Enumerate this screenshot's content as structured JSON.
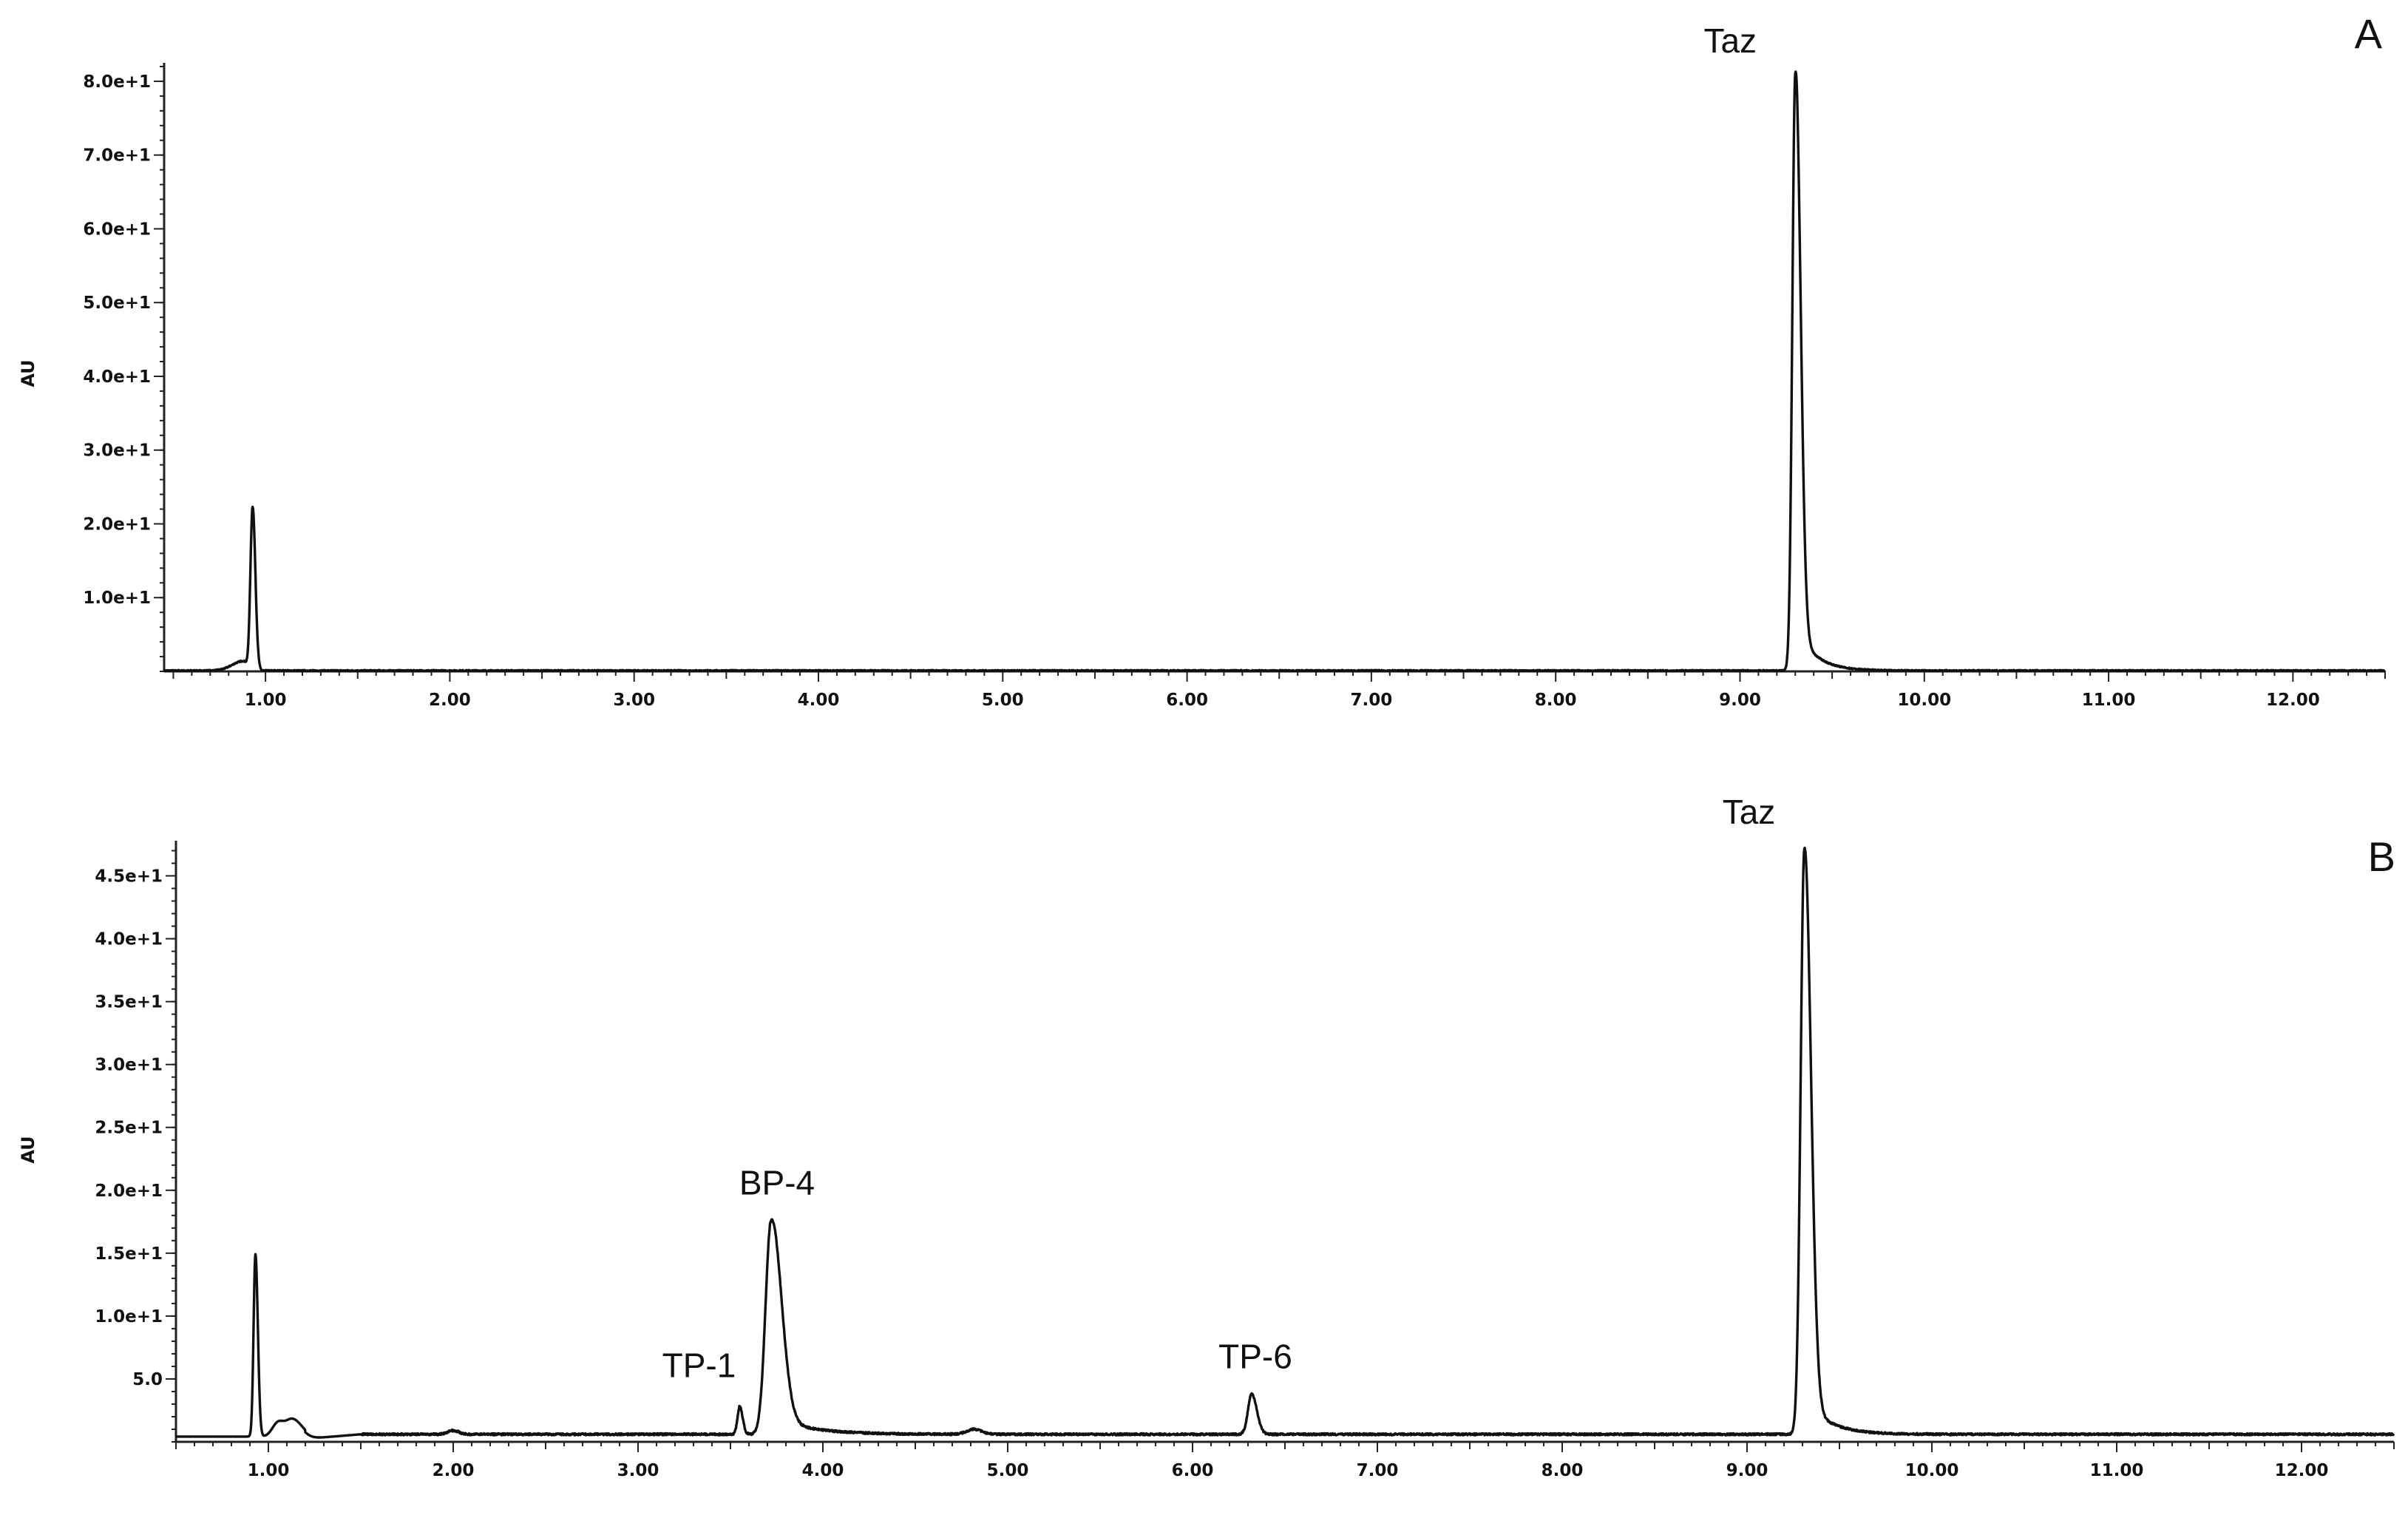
{
  "chart_data": [
    {
      "type": "line",
      "panel": "A",
      "ylabel": "AU",
      "xlim": [
        0.45,
        12.5
      ],
      "ylim": [
        0,
        82
      ],
      "x_ticks": [
        1.0,
        2.0,
        3.0,
        4.0,
        5.0,
        6.0,
        7.0,
        8.0,
        9.0,
        10.0,
        11.0,
        12.0
      ],
      "x_tick_labels": [
        "1.00",
        "2.00",
        "3.00",
        "4.00",
        "5.00",
        "6.00",
        "7.00",
        "8.00",
        "9.00",
        "10.00",
        "11.00",
        "12.00"
      ],
      "y_ticks": [
        10,
        20,
        30,
        40,
        50,
        60,
        70,
        80
      ],
      "y_tick_labels": [
        "1.0e+1",
        "2.0e+1",
        "3.0e+1",
        "4.0e+1",
        "5.0e+1",
        "6.0e+1",
        "7.0e+1",
        "8.0e+1"
      ],
      "baseline": 0.1,
      "peaks": [
        {
          "rt": 0.93,
          "height": 22.2,
          "sigma_left": 0.012,
          "sigma_right": 0.015
        },
        {
          "rt": 9.3,
          "height": 81.0,
          "sigma_left": 0.016,
          "sigma_right": 0.028,
          "tail": 6.5
        },
        {
          "rt": 0.88,
          "height": 1.3,
          "sigma_left": 0.06,
          "sigma_right": 0.02
        }
      ],
      "annotations": [
        {
          "text": "Taz",
          "rt": 9.3
        }
      ]
    },
    {
      "type": "line",
      "panel": "B",
      "ylabel": "AU",
      "xlim": [
        0.5,
        12.5
      ],
      "ylim": [
        0,
        47.5
      ],
      "x_ticks": [
        1.0,
        2.0,
        3.0,
        4.0,
        5.0,
        6.0,
        7.0,
        8.0,
        9.0,
        10.0,
        11.0,
        12.0
      ],
      "x_tick_labels": [
        "1.00",
        "2.00",
        "3.00",
        "4.00",
        "5.00",
        "6.00",
        "7.00",
        "8.00",
        "9.00",
        "10.00",
        "11.00",
        "12.00"
      ],
      "y_ticks": [
        5,
        10,
        15,
        20,
        25,
        30,
        35,
        40,
        45
      ],
      "y_tick_labels": [
        "5.0",
        "1.0e+1",
        "1.5e+1",
        "2.0e+1",
        "2.5e+1",
        "3.0e+1",
        "3.5e+1",
        "4.0e+1",
        "4.5e+1"
      ],
      "baseline": 0.6,
      "peaks": [
        {
          "rt": 0.93,
          "height": 14.5,
          "sigma_left": 0.01,
          "sigma_right": 0.013
        },
        {
          "rt": 1.05,
          "height": 1.0,
          "sigma_left": 0.03,
          "sigma_right": 0.03
        },
        {
          "rt": 1.13,
          "height": 1.4,
          "sigma_left": 0.04,
          "sigma_right": 0.05
        },
        {
          "rt": 3.55,
          "height": 2.2,
          "sigma_left": 0.012,
          "sigma_right": 0.016
        },
        {
          "rt": 3.72,
          "height": 17.0,
          "sigma_left": 0.03,
          "sigma_right": 0.055,
          "tail": 1.5
        },
        {
          "rt": 6.32,
          "height": 3.2,
          "sigma_left": 0.02,
          "sigma_right": 0.028
        },
        {
          "rt": 9.31,
          "height": 46.5,
          "sigma_left": 0.02,
          "sigma_right": 0.035,
          "tail": 3.0
        },
        {
          "rt": 4.82,
          "height": 0.4,
          "sigma_left": 0.04,
          "sigma_right": 0.04
        },
        {
          "rt": 2.0,
          "height": 0.3,
          "sigma_left": 0.03,
          "sigma_right": 0.03
        }
      ],
      "annotations": [
        {
          "text": "TP-1",
          "rt": 3.55
        },
        {
          "text": "BP-4",
          "rt": 3.72
        },
        {
          "text": "TP-6",
          "rt": 6.32
        },
        {
          "text": "Taz",
          "rt": 9.31
        }
      ]
    }
  ]
}
